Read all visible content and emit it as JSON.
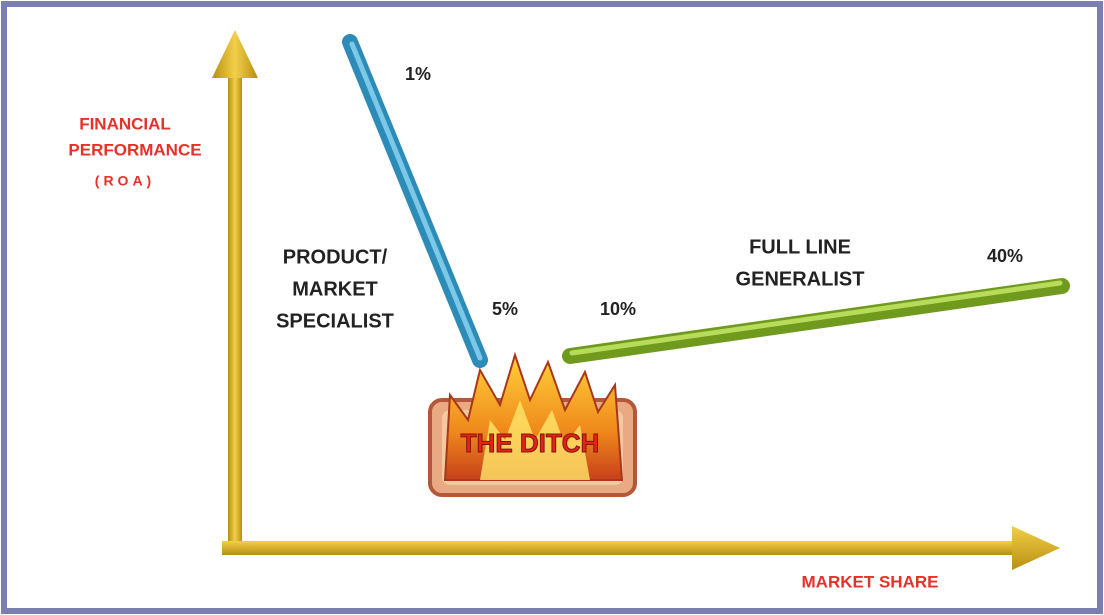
{
  "y_axis": {
    "label": [
      "FINANCIAL",
      "PERFORMANCE",
      "(ROA)"
    ]
  },
  "x_axis": {
    "label": "MARKET SHARE"
  },
  "specialist": {
    "label": [
      "PRODUCT/",
      "MARKET",
      "SPECIALIST"
    ],
    "points": [
      "1%",
      "5%"
    ]
  },
  "generalist": {
    "label": [
      "FULL LINE",
      "GENERALIST"
    ],
    "points": [
      "10%",
      "40%"
    ]
  },
  "ditch": {
    "label": "THE DITCH"
  }
}
